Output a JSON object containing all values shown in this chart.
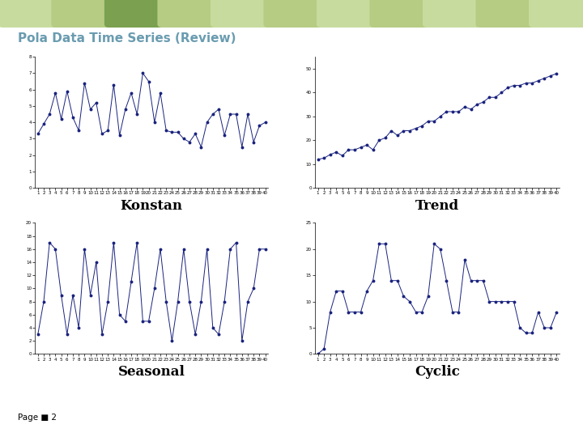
{
  "title": "Pola Data Time Series (Review)",
  "title_color": "#6a9cb0",
  "background_color": "#ffffff",
  "line_color": "#1a237e",
  "konstan_label": "Konstan",
  "trend_label": "Trend",
  "seasonal_label": "Seasonal",
  "cyclic_label": "Cyclic",
  "page_label": "Page ■ 2",
  "header_colors": [
    "#c8db9e",
    "#b5cc82",
    "#7aa050",
    "#b5cc82",
    "#c8db9e",
    "#b5cc82",
    "#c8db9e",
    "#b5cc82",
    "#c8db9e",
    "#b5cc82",
    "#c8db9e"
  ],
  "konstan_data": [
    3.3,
    3.9,
    4.5,
    5.8,
    4.2,
    5.9,
    4.3,
    3.5,
    6.4,
    4.8,
    5.2,
    3.3,
    3.5,
    6.3,
    3.2,
    4.8,
    5.8,
    4.5,
    7.0,
    6.5,
    4.0,
    5.8,
    3.5,
    3.4,
    3.4,
    3.0,
    2.8,
    3.3,
    2.5,
    4.0,
    4.5,
    4.8,
    3.2,
    4.5,
    4.5,
    2.5,
    4.5,
    2.8,
    3.8,
    4.0
  ],
  "trend_data": [
    12,
    12.5,
    14,
    15,
    13.5,
    16,
    16,
    17,
    18,
    16,
    20,
    21,
    24,
    22,
    24,
    24,
    25,
    26,
    28,
    28,
    30,
    32,
    32,
    32,
    34,
    33,
    35,
    36,
    38,
    38,
    40,
    42,
    43,
    43,
    44,
    44,
    45,
    46,
    47,
    48
  ],
  "seasonal_data": [
    3,
    8,
    17,
    16,
    9,
    3,
    9,
    4,
    16,
    9,
    14,
    3,
    8,
    17,
    6,
    5,
    11,
    17,
    5,
    5,
    10,
    16,
    8,
    2,
    8,
    16,
    8,
    3,
    8,
    16,
    4,
    3,
    8,
    16,
    17,
    2,
    8,
    10,
    16,
    16
  ],
  "cyclic_data": [
    0,
    1,
    8,
    12,
    12,
    8,
    8,
    8,
    12,
    14,
    21,
    21,
    14,
    14,
    11,
    10,
    8,
    8,
    11,
    21,
    20,
    14,
    8,
    8,
    18,
    14,
    14,
    14,
    10,
    10,
    10,
    10,
    10,
    5,
    4,
    4,
    8,
    5,
    5,
    8
  ]
}
